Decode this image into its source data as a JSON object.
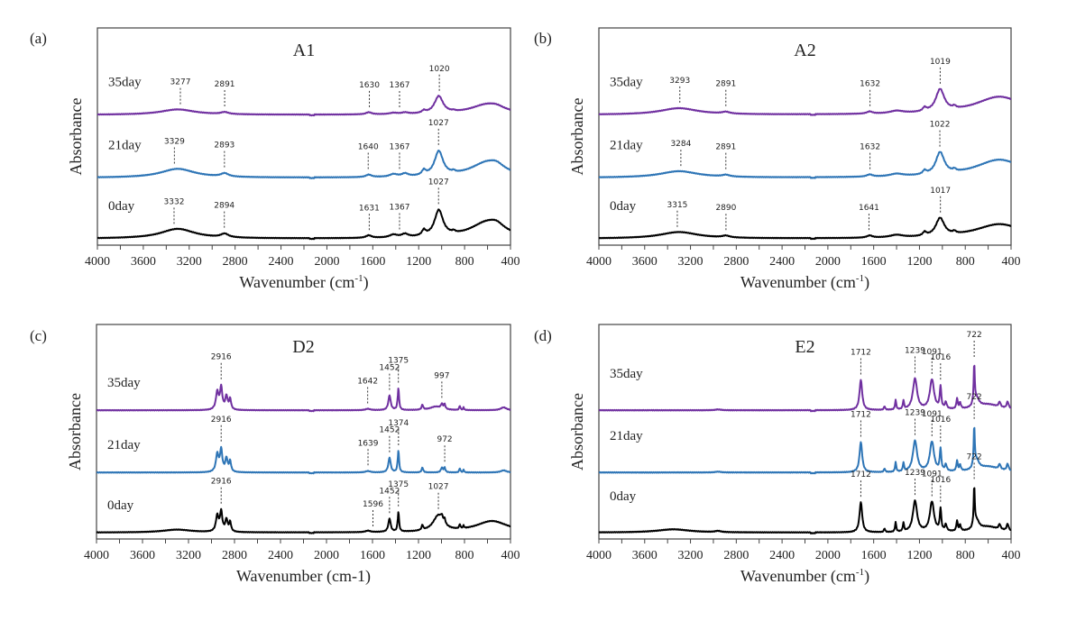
{
  "figure": {
    "ylabel": "Absorbance"
  },
  "chart_data": [
    {
      "type": "line",
      "panel": "(a)",
      "title": "A1",
      "xlabel": "Wavenumber (cm-1)",
      "xlabel_superscript": true,
      "ylabel": "Absorbance",
      "xlim": [
        4000,
        400
      ],
      "x_reversed": true,
      "xticks": [
        4000,
        3600,
        3200,
        2800,
        2400,
        2000,
        1600,
        1200,
        800,
        400
      ],
      "grid": false,
      "series": [
        {
          "name": "35day",
          "color": "#7030A0",
          "peaks": [
            3277,
            2891,
            1630,
            1367,
            1020
          ]
        },
        {
          "name": "21day",
          "color": "#2E75B6",
          "peaks": [
            3329,
            2893,
            1640,
            1367,
            1027
          ]
        },
        {
          "name": "0day",
          "color": "#000000",
          "peaks": [
            3332,
            2894,
            1631,
            1367,
            1027
          ]
        }
      ]
    },
    {
      "type": "line",
      "panel": "(b)",
      "title": "A2",
      "xlabel": "Wavenumber (cm-1)",
      "xlabel_superscript": true,
      "ylabel": "Absorbance",
      "xlim": [
        4000,
        400
      ],
      "x_reversed": true,
      "xticks": [
        4000,
        3600,
        3200,
        2800,
        2400,
        2000,
        1600,
        1200,
        800,
        400
      ],
      "grid": false,
      "series": [
        {
          "name": "35day",
          "color": "#7030A0",
          "peaks": [
            3293,
            2891,
            1632,
            1019
          ]
        },
        {
          "name": "21day",
          "color": "#2E75B6",
          "peaks": [
            3284,
            2891,
            1632,
            1022
          ]
        },
        {
          "name": "0day",
          "color": "#000000",
          "peaks": [
            3315,
            2890,
            1641,
            1017
          ]
        }
      ]
    },
    {
      "type": "line",
      "panel": "(c)",
      "title": "D2",
      "xlabel": "Wavenumber (cm-1)",
      "xlabel_superscript": false,
      "ylabel": "Absorbance",
      "xlim": [
        4000,
        400
      ],
      "x_reversed": true,
      "xticks": [
        4000,
        3600,
        3200,
        2800,
        2400,
        2000,
        1600,
        1200,
        800,
        400
      ],
      "grid": false,
      "series": [
        {
          "name": "35day",
          "color": "#7030A0",
          "peaks": [
            2916,
            1642,
            1452,
            1375,
            997
          ]
        },
        {
          "name": "21day",
          "color": "#2E75B6",
          "peaks": [
            2916,
            1639,
            1452,
            1374,
            972
          ]
        },
        {
          "name": "0day",
          "color": "#000000",
          "peaks": [
            2916,
            1596,
            1452,
            1375,
            1027
          ]
        }
      ]
    },
    {
      "type": "line",
      "panel": "(d)",
      "title": "E2",
      "xlabel": "Wavenumber (cm-1)",
      "xlabel_superscript": true,
      "ylabel": "Absorbance",
      "xlim": [
        4000,
        400
      ],
      "x_reversed": true,
      "xticks": [
        4000,
        3600,
        3200,
        2800,
        2400,
        2000,
        1600,
        1200,
        800,
        400
      ],
      "grid": false,
      "series": [
        {
          "name": "35day",
          "color": "#7030A0",
          "peaks": [
            1712,
            1239,
            1091,
            1016,
            722
          ]
        },
        {
          "name": "21day",
          "color": "#2E75B6",
          "peaks": [
            1712,
            1239,
            1091,
            1016,
            722
          ]
        },
        {
          "name": "0day",
          "color": "#000000",
          "peaks": [
            1712,
            1239,
            1091,
            1016,
            722
          ]
        }
      ]
    }
  ]
}
